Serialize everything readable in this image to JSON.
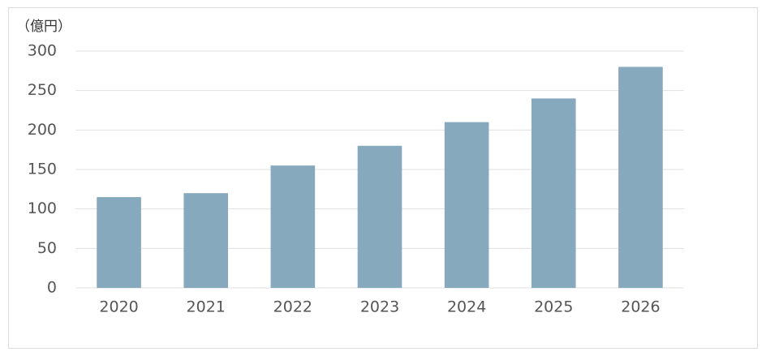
{
  "chart_data": {
    "type": "bar",
    "y_label": "（億円）",
    "categories": [
      "2020",
      "2021",
      "2022",
      "2023",
      "2024",
      "2025",
      "2026"
    ],
    "values": [
      115,
      120,
      155,
      180,
      210,
      240,
      280
    ],
    "color": "#87a9bd",
    "ylim": [
      0,
      300
    ],
    "yticks": [
      0,
      50,
      100,
      150,
      200,
      250,
      300
    ],
    "grid": true
  }
}
